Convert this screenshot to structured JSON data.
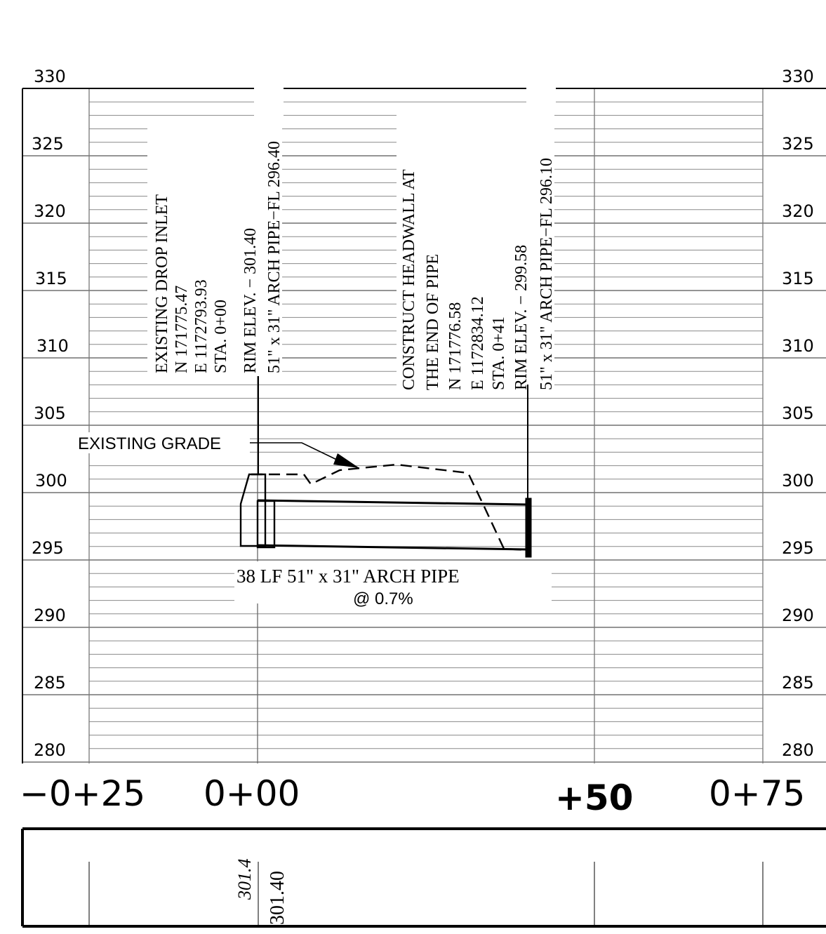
{
  "profile": {
    "elevation_labels": [
      "330",
      "325",
      "320",
      "315",
      "310",
      "305",
      "300",
      "295",
      "290",
      "285",
      "280"
    ],
    "station_labels": {
      "minus25": "−0+25",
      "zero": "0+00",
      "plus50": "+50",
      "plus75": "0+75"
    },
    "inlet_callout": [
      "EXISTING DROP INLET",
      "N 171775.47",
      "E 1172793.93",
      "STA. 0+00",
      "RIM ELEV. − 301.40",
      "51\" x 31\" ARCH PIPE−FL 296.40"
    ],
    "headwall_callout": [
      "CONSTRUCT HEADWALL AT",
      "THE END OF PIPE",
      "N 171776.58",
      "E 1172834.12",
      "STA. 0+41",
      "RIM ELEV. − 299.58",
      "51\" x 31\" ARCH PIPE−FL 296.10"
    ],
    "existing_grade_label": "EXISTING GRADE",
    "pipe_label_line1": "38 LF 51\" x 31\" ARCH PIPE",
    "pipe_label_line2": "@ 0.7%"
  },
  "data_strip": {
    "existing_value": "301.4",
    "proposed_value": "301.40"
  }
}
